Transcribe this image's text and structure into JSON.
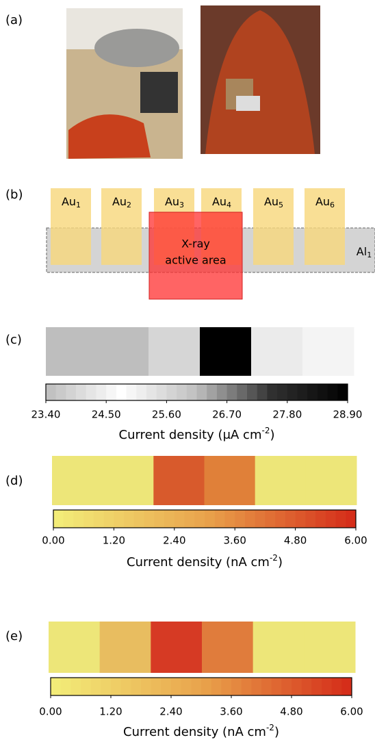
{
  "labels": {
    "a": "(a)",
    "b": "(b)",
    "c": "(c)",
    "d": "(d)",
    "e": "(e)"
  },
  "diagram": {
    "electrodes": [
      {
        "base": "Au",
        "sub": "1"
      },
      {
        "base": "Au",
        "sub": "2"
      },
      {
        "base": "Au",
        "sub": "3"
      },
      {
        "base": "Au",
        "sub": "4"
      },
      {
        "base": "Au",
        "sub": "5"
      },
      {
        "base": "Au",
        "sub": "6"
      }
    ],
    "strip": {
      "base": "Al",
      "sub": "1"
    },
    "xray": [
      "X-ray",
      "active area"
    ]
  },
  "maps": [
    {
      "segments": [
        "#bebebe",
        "#bebebe",
        "#d6d6d6",
        "#000000",
        "#ebebeb",
        "#f4f4f4"
      ],
      "colorbar": [
        "#bdbdbd",
        "#ffffff",
        "#bfbfbf",
        "#303030",
        "#000000"
      ],
      "xlim": [
        23.4,
        28.9
      ],
      "xticks": [
        {
          "value": 23.4,
          "label": "23.40"
        },
        {
          "value": 24.5,
          "label": "24.50"
        },
        {
          "value": 25.6,
          "label": "25.60"
        },
        {
          "value": 26.7,
          "label": "26.70"
        },
        {
          "value": 27.8,
          "label": "27.80"
        },
        {
          "value": 28.9,
          "label": "28.90"
        }
      ],
      "axis_label": {
        "text": "Current density (μA cm",
        "sup": "-2",
        "end": ")"
      }
    },
    {
      "segments": [
        "#ede679",
        "#ede679",
        "#d85a2c",
        "#e08039",
        "#ede679",
        "#ede679"
      ],
      "colorbar": [
        "#f3ee7a",
        "#e9a44c",
        "#d42a18"
      ],
      "xlim": [
        0,
        6
      ],
      "xticks": [
        {
          "value": 0,
          "label": "0.00"
        },
        {
          "value": 1.2,
          "label": "1.20"
        },
        {
          "value": 2.4,
          "label": "2.40"
        },
        {
          "value": 3.6,
          "label": "3.60"
        },
        {
          "value": 4.8,
          "label": "4.80"
        },
        {
          "value": 6,
          "label": "6.00"
        }
      ],
      "axis_label": {
        "text": "Current density (nA cm",
        "sup": "-2",
        "end": ")"
      }
    },
    {
      "segments": [
        "#ede679",
        "#e8bd60",
        "#d63a24",
        "#e07c3c",
        "#ede679",
        "#ede679"
      ],
      "colorbar": [
        "#f3ee7a",
        "#e9a44c",
        "#d42a18"
      ],
      "xlim": [
        0,
        6
      ],
      "xticks": [
        {
          "value": 0,
          "label": "0.00"
        },
        {
          "value": 1.2,
          "label": "1.20"
        },
        {
          "value": 2.4,
          "label": "2.40"
        },
        {
          "value": 3.6,
          "label": "3.60"
        },
        {
          "value": 4.8,
          "label": "4.80"
        },
        {
          "value": 6,
          "label": "6.00"
        }
      ],
      "axis_label": {
        "text": "Current density (nA cm",
        "sup": "-2",
        "end": ")"
      }
    }
  ]
}
